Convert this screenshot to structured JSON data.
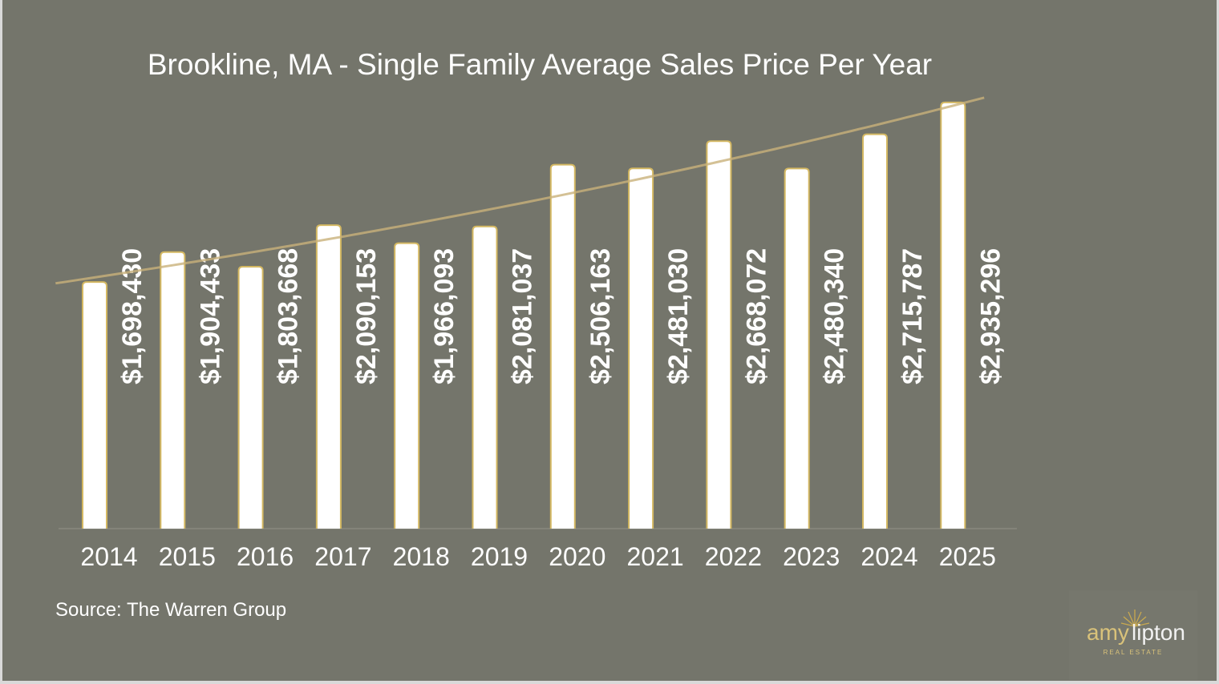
{
  "chart_data": {
    "type": "bar",
    "title": "Brookline, MA - Single Family Average Sales Price Per Year",
    "categories": [
      "2014",
      "2015",
      "2016",
      "2017",
      "2018",
      "2019",
      "2020",
      "2021",
      "2022",
      "2023",
      "2024",
      "2025"
    ],
    "values": [
      1698430,
      1904433,
      1803668,
      2090153,
      1966093,
      2081037,
      2506163,
      2481030,
      2668072,
      2480340,
      2715787,
      2935296
    ],
    "data_labels": [
      "$1,698,430",
      "$1,904,433",
      "$1,803,668",
      "$2,090,153",
      "$1,966,093",
      "$2,081,037",
      "$2,506,163",
      "$2,481,030",
      "$2,668,072",
      "$2,480,340",
      "$2,715,787",
      "$2,935,296"
    ],
    "trendline": "exponential",
    "ylim": [
      0,
      3100000
    ],
    "grid": false,
    "xlabel": "",
    "ylabel": "",
    "colors": {
      "background": "#74756b",
      "bar": "#ffffff",
      "bar_border": "#d4b862",
      "trendline": "#c9b27a"
    }
  },
  "source": "Source: The Warren Group",
  "logo": {
    "text_left": "amy",
    "text_right": "lipton",
    "subtitle": "REAL ESTATE"
  }
}
